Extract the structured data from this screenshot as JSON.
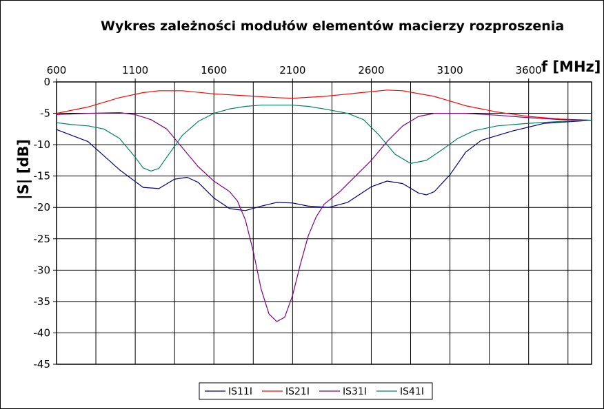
{
  "chart_data": {
    "type": "line",
    "title": "Wykres zależności modułów elementów macierzy rozproszenia",
    "xlabel": "f [MHz]",
    "ylabel": "|S| [dB]",
    "xlim": [
      600,
      4000
    ],
    "ylim": [
      -45,
      0
    ],
    "xticks": [
      600,
      1100,
      1600,
      2100,
      2600,
      3100,
      3600
    ],
    "yticks": [
      0,
      -5,
      -10,
      -15,
      -20,
      -25,
      -30,
      -35,
      -40,
      -45
    ],
    "x_axis_position": "top",
    "grid": true,
    "legend_position": "bottom",
    "series": [
      {
        "name": "IS11I",
        "color": "#000080",
        "points": [
          [
            600,
            -7.6
          ],
          [
            800,
            -9.5
          ],
          [
            1000,
            -14
          ],
          [
            1150,
            -16.8
          ],
          [
            1250,
            -17
          ],
          [
            1350,
            -15.5
          ],
          [
            1430,
            -15.2
          ],
          [
            1500,
            -16
          ],
          [
            1600,
            -18.5
          ],
          [
            1700,
            -20.2
          ],
          [
            1800,
            -20.5
          ],
          [
            1900,
            -19.8
          ],
          [
            2000,
            -19.2
          ],
          [
            2100,
            -19.3
          ],
          [
            2200,
            -19.8
          ],
          [
            2330,
            -20
          ],
          [
            2450,
            -19.2
          ],
          [
            2600,
            -16.7
          ],
          [
            2700,
            -15.8
          ],
          [
            2800,
            -16.2
          ],
          [
            2900,
            -17.7
          ],
          [
            2950,
            -18
          ],
          [
            3000,
            -17.5
          ],
          [
            3100,
            -14.8
          ],
          [
            3200,
            -11.2
          ],
          [
            3300,
            -9.3
          ],
          [
            3500,
            -7.8
          ],
          [
            3700,
            -6.6
          ],
          [
            4000,
            -6.1
          ]
        ]
      },
      {
        "name": "IS21I",
        "color": "#ff0000",
        "points": [
          [
            600,
            -5
          ],
          [
            800,
            -4
          ],
          [
            1000,
            -2.5
          ],
          [
            1150,
            -1.7
          ],
          [
            1250,
            -1.4
          ],
          [
            1400,
            -1.4
          ],
          [
            1600,
            -1.9
          ],
          [
            1800,
            -2.2
          ],
          [
            2000,
            -2.5
          ],
          [
            2100,
            -2.6
          ],
          [
            2300,
            -2.3
          ],
          [
            2500,
            -1.8
          ],
          [
            2700,
            -1.3
          ],
          [
            2800,
            -1.4
          ],
          [
            3000,
            -2.3
          ],
          [
            3200,
            -3.8
          ],
          [
            3400,
            -4.8
          ],
          [
            3600,
            -5.5
          ],
          [
            3800,
            -5.9
          ],
          [
            4000,
            -6.1
          ]
        ]
      },
      {
        "name": "IS31I",
        "color": "#800080",
        "points": [
          [
            600,
            -5.2
          ],
          [
            800,
            -5
          ],
          [
            1000,
            -4.9
          ],
          [
            1100,
            -5.2
          ],
          [
            1200,
            -6
          ],
          [
            1300,
            -7.5
          ],
          [
            1400,
            -10.5
          ],
          [
            1500,
            -13.5
          ],
          [
            1600,
            -15.8
          ],
          [
            1700,
            -17.5
          ],
          [
            1750,
            -19
          ],
          [
            1800,
            -22
          ],
          [
            1850,
            -27
          ],
          [
            1900,
            -33
          ],
          [
            1950,
            -37
          ],
          [
            2000,
            -38.2
          ],
          [
            2050,
            -37.5
          ],
          [
            2100,
            -34
          ],
          [
            2150,
            -29
          ],
          [
            2200,
            -24.5
          ],
          [
            2250,
            -21.5
          ],
          [
            2300,
            -19.5
          ],
          [
            2400,
            -17.5
          ],
          [
            2500,
            -15
          ],
          [
            2600,
            -12.5
          ],
          [
            2700,
            -9.5
          ],
          [
            2800,
            -7
          ],
          [
            2900,
            -5.5
          ],
          [
            3000,
            -5
          ],
          [
            3200,
            -5
          ],
          [
            3400,
            -5.3
          ],
          [
            3600,
            -5.7
          ],
          [
            3800,
            -6
          ],
          [
            4000,
            -6.1
          ]
        ]
      },
      {
        "name": "IS41I",
        "color": "#008060",
        "points": [
          [
            600,
            -6.5
          ],
          [
            700,
            -6.8
          ],
          [
            800,
            -7
          ],
          [
            900,
            -7.5
          ],
          [
            1000,
            -9
          ],
          [
            1100,
            -12
          ],
          [
            1150,
            -13.7
          ],
          [
            1200,
            -14.2
          ],
          [
            1250,
            -13.8
          ],
          [
            1300,
            -12
          ],
          [
            1400,
            -8.5
          ],
          [
            1500,
            -6.3
          ],
          [
            1600,
            -5
          ],
          [
            1700,
            -4.3
          ],
          [
            1800,
            -3.9
          ],
          [
            1900,
            -3.7
          ],
          [
            2000,
            -3.7
          ],
          [
            2100,
            -3.7
          ],
          [
            2200,
            -3.9
          ],
          [
            2300,
            -4.3
          ],
          [
            2450,
            -5
          ],
          [
            2550,
            -6
          ],
          [
            2650,
            -8.5
          ],
          [
            2750,
            -11.5
          ],
          [
            2850,
            -13
          ],
          [
            2950,
            -12.5
          ],
          [
            3050,
            -10.8
          ],
          [
            3150,
            -9
          ],
          [
            3250,
            -7.8
          ],
          [
            3400,
            -7
          ],
          [
            3600,
            -6.6
          ],
          [
            3800,
            -6.3
          ],
          [
            4000,
            -6.1
          ]
        ]
      }
    ]
  }
}
